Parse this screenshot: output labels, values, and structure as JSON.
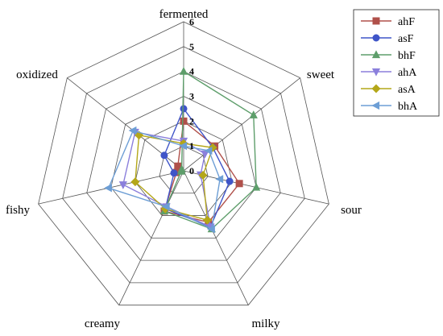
{
  "chart_data": {
    "type": "radar",
    "axes": [
      "fermented",
      "sweet",
      "sour",
      "milky",
      "creamy",
      "fishy",
      "oxidized"
    ],
    "rlim": [
      0,
      6
    ],
    "ticks": [
      "0",
      "1",
      "2",
      "3",
      "4",
      "5",
      "6"
    ],
    "grid": true,
    "legend": "right",
    "series": [
      {
        "name": "ahF",
        "color": "#b0504a",
        "marker": "square",
        "values": [
          2,
          1.6,
          2.3,
          2.3,
          1.8,
          0.3,
          0.3
        ]
      },
      {
        "name": "asF",
        "color": "#3f55c8",
        "marker": "circle",
        "values": [
          2.5,
          1.5,
          1.9,
          2.5,
          1.7,
          0.4,
          1.0
        ]
      },
      {
        "name": "bhF",
        "color": "#5e9e6b",
        "marker": "triangle-up",
        "values": [
          4,
          3.6,
          3.0,
          2.6,
          1.8,
          0.1,
          0.1
        ]
      },
      {
        "name": "ahA",
        "color": "#8b7fdc",
        "marker": "triangle-down",
        "values": [
          1.2,
          1.1,
          0.7,
          2.5,
          1.6,
          2.5,
          2.5
        ]
      },
      {
        "name": "asA",
        "color": "#b4a719",
        "marker": "diamond",
        "values": [
          1.1,
          1.5,
          0.8,
          2.2,
          1.7,
          2.0,
          2.3
        ]
      },
      {
        "name": "bhA",
        "color": "#6d9ed5",
        "marker": "triangle-left",
        "values": [
          1.0,
          1.3,
          1.5,
          2.6,
          1.6,
          3.1,
          2.6
        ]
      }
    ]
  }
}
